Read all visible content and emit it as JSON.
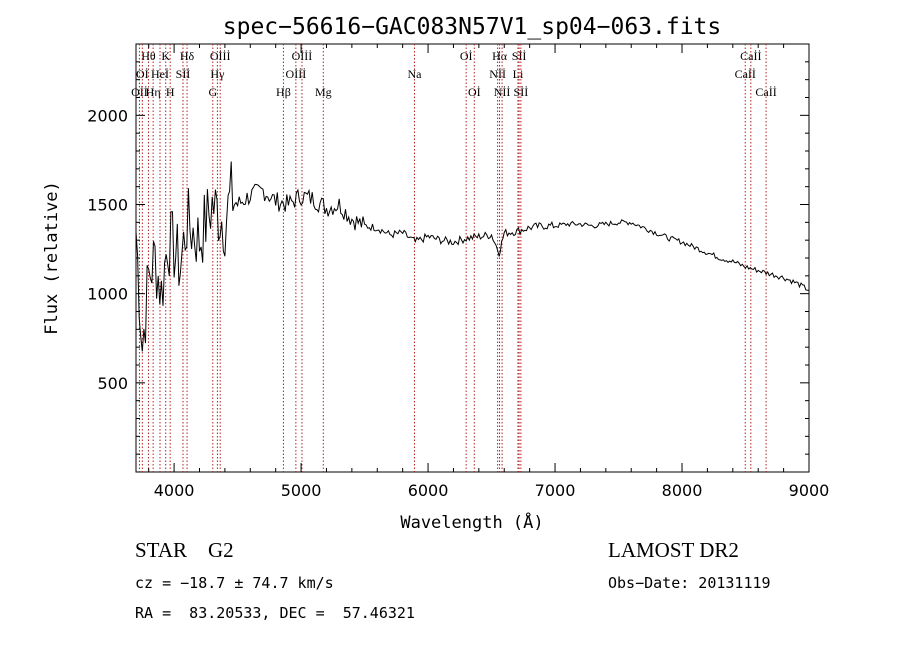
{
  "chart_data": {
    "type": "line",
    "title": "spec−56616−GAC083N57V1_sp04−063.fits",
    "xlabel": "Wavelength (Å)",
    "ylabel": "Flux (relative)",
    "xlim": [
      3700,
      9000
    ],
    "ylim": [
      0,
      2400
    ],
    "xticks": [
      4000,
      5000,
      6000,
      7000,
      8000,
      9000
    ],
    "yticks": [
      500,
      1000,
      1500,
      2000
    ],
    "series": [
      {
        "x": [
          3700,
          3750,
          3800,
          3850,
          3900,
          3950,
          4000,
          4050,
          4100,
          4150,
          4200,
          4250,
          4300,
          4350,
          4400,
          4450,
          4500,
          4600,
          4700,
          4800,
          4900,
          5000,
          5100,
          5200,
          5300,
          5400,
          5500,
          5600,
          5700,
          5800,
          5900,
          6000,
          6100,
          6200,
          6300,
          6400,
          6500,
          6560,
          6600,
          6700,
          6800,
          6900,
          7000,
          7100,
          7200,
          7300,
          7400,
          7500,
          7600,
          7700,
          7800,
          7900,
          8000,
          8100,
          8200,
          8300,
          8400,
          8500,
          8600,
          8700,
          8800,
          8900,
          9000
        ],
        "y": [
          1350,
          700,
          1100,
          1200,
          1000,
          1300,
          1250,
          1150,
          1400,
          1350,
          1300,
          1400,
          1500,
          1450,
          1400,
          1550,
          1500,
          1550,
          1580,
          1520,
          1500,
          1550,
          1530,
          1480,
          1500,
          1420,
          1380,
          1370,
          1330,
          1340,
          1290,
          1320,
          1300,
          1290,
          1310,
          1320,
          1330,
          1230,
          1340,
          1350,
          1370,
          1380,
          1380,
          1390,
          1390,
          1380,
          1390,
          1400,
          1400,
          1370,
          1340,
          1310,
          1290,
          1260,
          1230,
          1200,
          1180,
          1150,
          1130,
          1110,
          1090,
          1060,
          1020
        ]
      }
    ],
    "lines": [
      {
        "label": "Oİİ",
        "x": 3727,
        "row": 2
      },
      {
        "label": "Hθ",
        "x": 3798,
        "row": 0
      },
      {
        "label": "Oİ",
        "x": 3750,
        "row": 1
      },
      {
        "label": "Hη",
        "x": 3835,
        "row": 2
      },
      {
        "label": "Heİ",
        "x": 3889,
        "row": 1
      },
      {
        "label": "K",
        "x": 3934,
        "row": 0
      },
      {
        "label": "H",
        "x": 3969,
        "row": 2
      },
      {
        "label": "Sİİ",
        "x": 4070,
        "row": 1
      },
      {
        "label": "Hδ",
        "x": 4102,
        "row": 0
      },
      {
        "label": "G",
        "x": 4305,
        "row": 2
      },
      {
        "label": "Hγ",
        "x": 4341,
        "row": 1
      },
      {
        "label": "Oİİİ",
        "x": 4363,
        "row": 0
      },
      {
        "label": "Hβ",
        "x": 4861,
        "row": 2
      },
      {
        "label": "Oİİİ",
        "x": 4959,
        "row": 1
      },
      {
        "label": "Oİİİ",
        "x": 5007,
        "row": 0
      },
      {
        "label": "Mg",
        "x": 5175,
        "row": 2
      },
      {
        "label": "Na",
        "x": 5893,
        "row": 1
      },
      {
        "label": "Oİ",
        "x": 6300,
        "row": 0
      },
      {
        "label": "Oİ",
        "x": 6364,
        "row": 2
      },
      {
        "label": "Nİİ",
        "x": 6548,
        "row": 1
      },
      {
        "label": "Hα",
        "x": 6563,
        "row": 0
      },
      {
        "label": "Nİİ",
        "x": 6583,
        "row": 2
      },
      {
        "label": "Li",
        "x": 6708,
        "row": 1
      },
      {
        "label": "Sİİ",
        "x": 6717,
        "row": 0
      },
      {
        "label": "Sİİ",
        "x": 6731,
        "row": 2
      },
      {
        "label": "Caİİ",
        "x": 8498,
        "row": 1
      },
      {
        "label": "Caİİ",
        "x": 8542,
        "row": 0
      },
      {
        "label": "Caİİ",
        "x": 8662,
        "row": 2
      }
    ],
    "colors": {
      "spectrum": "#000000",
      "marker": "#b22222",
      "axes": "#000000"
    }
  },
  "info": {
    "class_text": "STAR    G2",
    "cz_text": "cz = −18.7 ± 74.7 km/s",
    "coord_text": "RA =  83.20533, DEC =  57.46321",
    "survey_text": "LAMOST DR2",
    "obsdate_text": "Obs−Date: 20131119"
  }
}
